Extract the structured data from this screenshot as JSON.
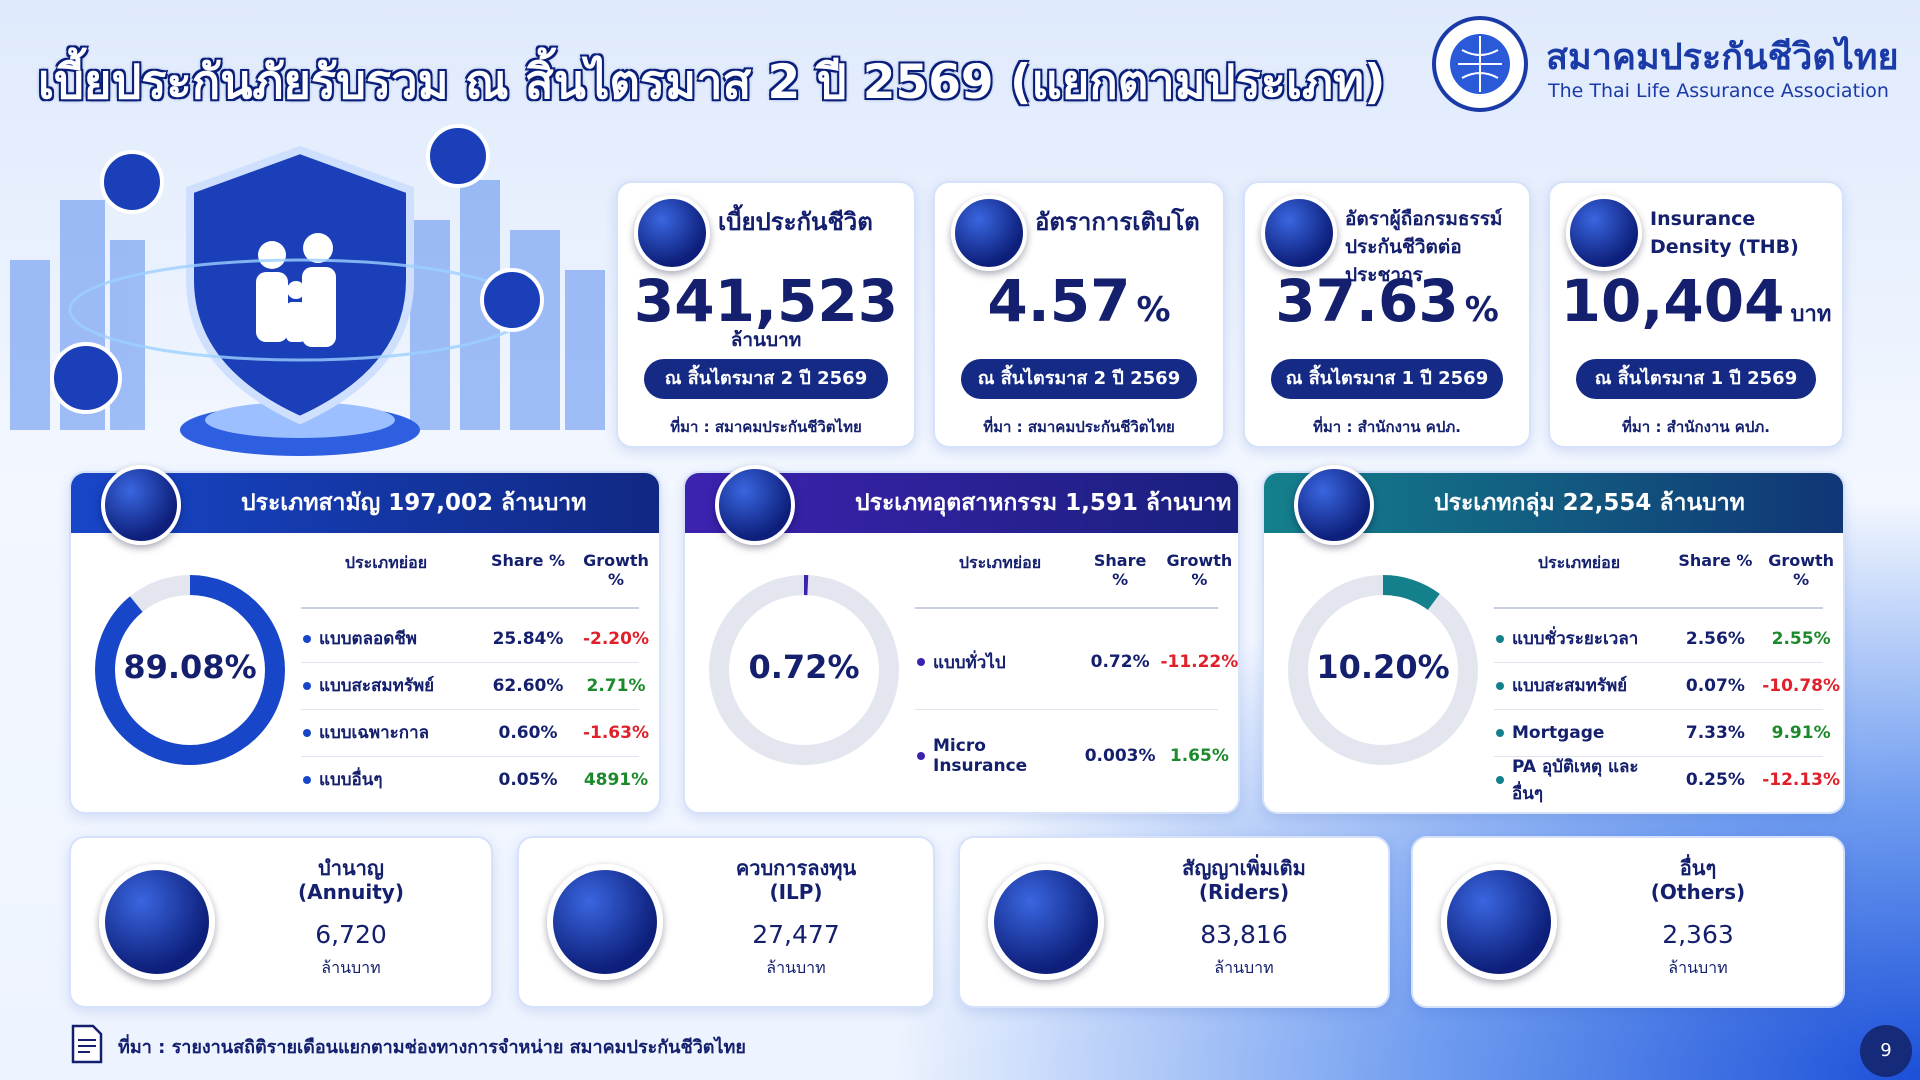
{
  "header": {
    "title": "เบี้ยประกันภัยรับรวม ณ สิ้นไตรมาส 2 ปี 2569 (แยกตามประเภท)",
    "org_th": "สมาคมประกันชีวิตไทย",
    "org_en": "The Thai Life Assurance Association"
  },
  "kpis": [
    {
      "title": "เบี้ยประกันชีวิต",
      "value": "341,523",
      "unit": "ล้านบาท",
      "period": "ณ สิ้นไตรมาส 2 ปี 2569",
      "source": "ที่มา : สมาคมประกันชีวิตไทย"
    },
    {
      "title": "อัตราการเติบโต",
      "value": "4.57",
      "unit": "%",
      "period": "ณ สิ้นไตรมาส 2 ปี 2569",
      "source": "ที่มา : สมาคมประกันชีวิตไทย"
    },
    {
      "title": "อัตราผู้ถือกรมธรรม์ประกันชีวิตต่อประชากร",
      "value": "37.63",
      "unit": "%",
      "period": "ณ สิ้นไตรมาส 1 ปี 2569",
      "source": "ที่มา : สำนักงาน คปภ."
    },
    {
      "title": "Insurance Density (THB)",
      "value": "10,404",
      "unit": "บาท",
      "period": "ณ สิ้นไตรมาส 1 ปี 2569",
      "source": "ที่มา : สำนักงาน คปภ."
    }
  ],
  "segments": [
    {
      "title": "ประเภทสามัญ  197,002 ล้านบาท",
      "color": "#1746c8",
      "donut": {
        "value": 89.08,
        "label": "89.08%"
      },
      "headers": [
        "ประเภทย่อย",
        "Share %",
        "Growth %"
      ],
      "rows": [
        [
          "แบบตลอดชีพ",
          "25.84%",
          "-2.20%"
        ],
        [
          "แบบสะสมทรัพย์",
          "62.60%",
          "2.71%"
        ],
        [
          "แบบเฉพาะกาล",
          "0.60%",
          "-1.63%"
        ],
        [
          "แบบอื่นๆ",
          "0.05%",
          "4891%"
        ]
      ]
    },
    {
      "title": "ประเภทอุตสาหกรรม 1,591 ล้านบาท",
      "color": "#3d22b0",
      "donut": {
        "value": 0.72,
        "label": "0.72%"
      },
      "headers": [
        "ประเภทย่อย",
        "Share %",
        "Growth %"
      ],
      "rows": [
        [
          "แบบทั่วไป",
          "0.72%",
          "-11.22%"
        ],
        [
          "Micro Insurance",
          "0.003%",
          "1.65%"
        ]
      ]
    },
    {
      "title": "ประเภทกลุ่ม  22,554 ล้านบาท",
      "color": "#14808c",
      "donut": {
        "value": 10.2,
        "label": "10.20%"
      },
      "headers": [
        "ประเภทย่อย",
        "Share %",
        "Growth %"
      ],
      "rows": [
        [
          "แบบชั่วระยะเวลา",
          "2.56%",
          "2.55%"
        ],
        [
          "แบบสะสมทรัพย์",
          "0.07%",
          "-10.78%"
        ],
        [
          "Mortgage",
          "7.33%",
          "9.91%"
        ],
        [
          "PA อุบัติเหตุ และอื่นๆ",
          "0.25%",
          "-12.13%"
        ]
      ]
    }
  ],
  "products": [
    {
      "title": "บำนาญ",
      "subtitle": "(Annuity)",
      "value": "6,720",
      "unit": "ล้านบาท"
    },
    {
      "title": "ควบการลงทุน",
      "subtitle": "(ILP)",
      "value": "27,477",
      "unit": "ล้านบาท"
    },
    {
      "title": "สัญญาเพิ่มเติม",
      "subtitle": "(Riders)",
      "value": "83,816",
      "unit": "ล้านบาท"
    },
    {
      "title": "อื่นๆ",
      "subtitle": "(Others)",
      "value": "2,363",
      "unit": "ล้านบาท"
    }
  ],
  "footer": {
    "source": "ที่มา : รายงานสถิติรายเดือนแยกตามช่องทางการจำหน่าย สมาคมประกันชีวิตไทย",
    "page": "9"
  }
}
